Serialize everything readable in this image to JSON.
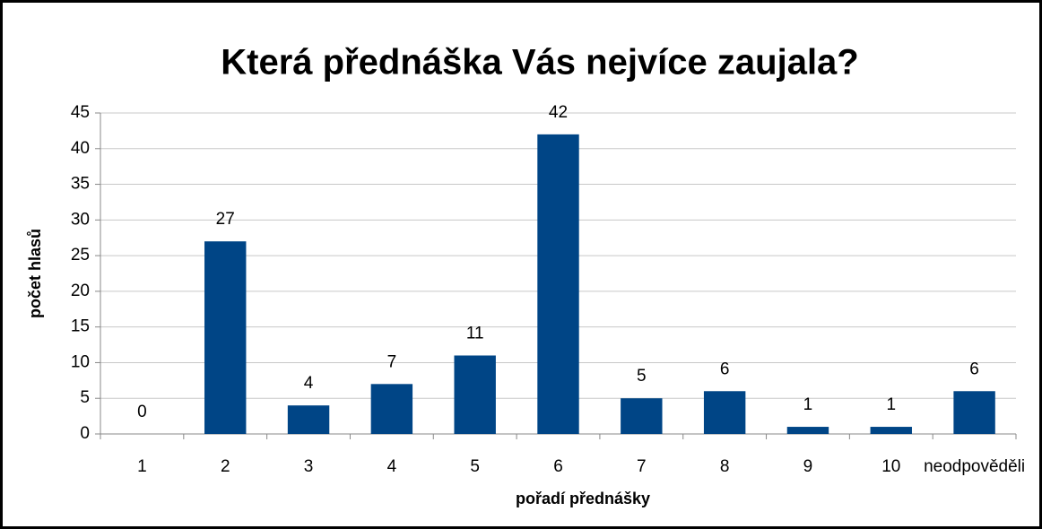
{
  "chart_data": {
    "type": "bar",
    "title": "Která přednáška Vás nejvíce zaujala?",
    "x_label": "pořadí přednášky",
    "y_label": "počet hlasů",
    "categories": [
      "1",
      "2",
      "3",
      "4",
      "5",
      "6",
      "7",
      "8",
      "9",
      "10",
      "neodpověděli"
    ],
    "values": [
      0,
      27,
      4,
      7,
      11,
      42,
      5,
      6,
      1,
      1,
      6
    ],
    "color": "#004586",
    "ylim": [
      0,
      45
    ],
    "yticks": [
      0,
      5,
      10,
      15,
      20,
      25,
      30,
      35,
      40,
      45
    ],
    "grid": true,
    "data_labels": true
  }
}
